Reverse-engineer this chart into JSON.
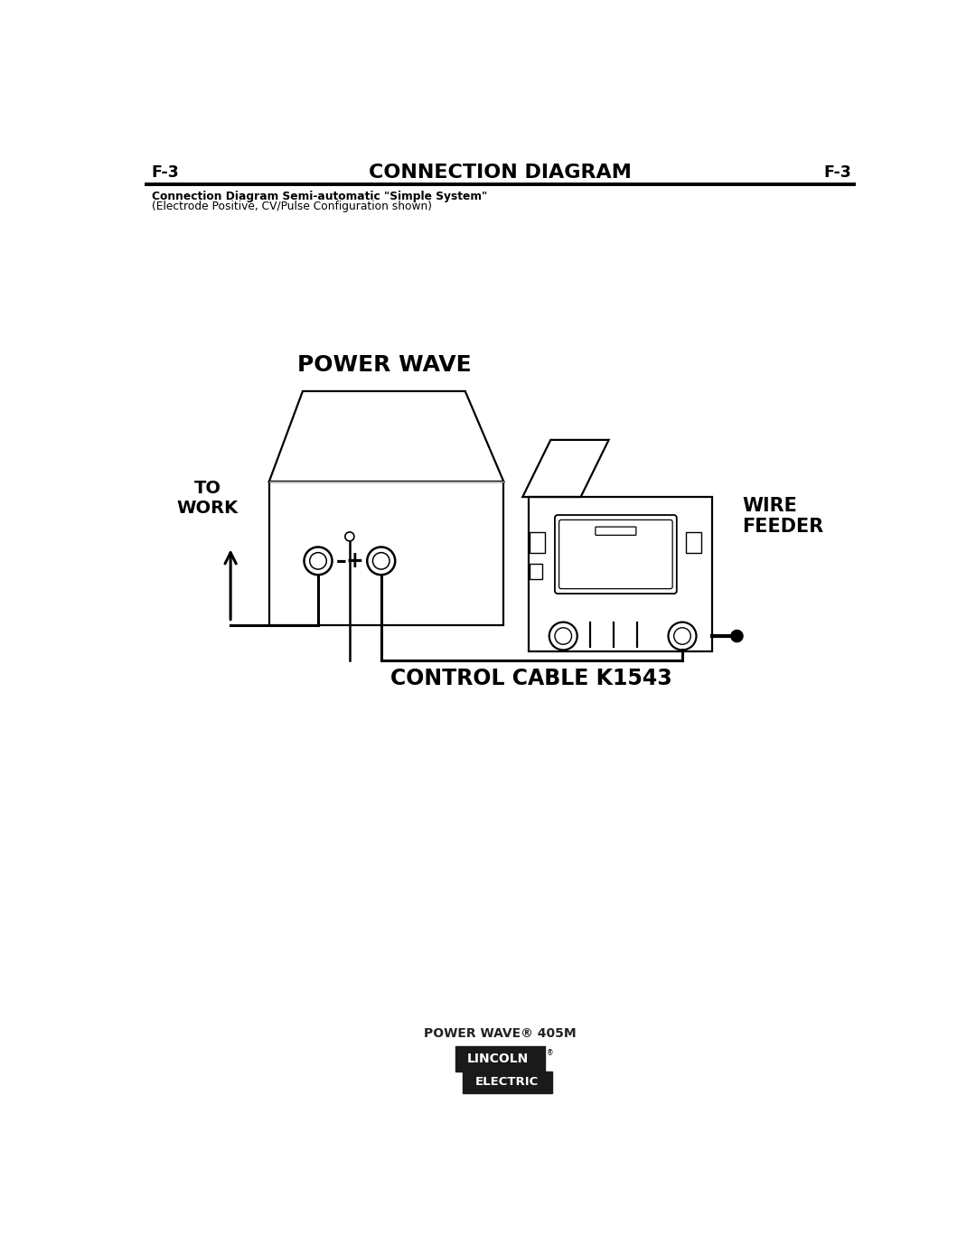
{
  "page_label": "F-3",
  "title": "CONNECTION DIAGRAM",
  "subtitle_bold": "Connection Diagram Semi-automatic \"Simple System\"",
  "subtitle_normal": "(Electrode Positive, CV/Pulse Configuration shown)",
  "power_wave_label": "POWER WAVE",
  "to_work_label": "TO\nWORK",
  "wire_feeder_label": "WIRE\nFEEDER",
  "control_cable_label": "CONTROL CABLE K1543",
  "footer_line1": "POWER WAVE® 405M",
  "footer_lincoln": "LINCOLN",
  "footer_electric": "ELECTRIC",
  "bg_color": "#ffffff",
  "lc": "#000000",
  "dark": "#1a1a1a"
}
